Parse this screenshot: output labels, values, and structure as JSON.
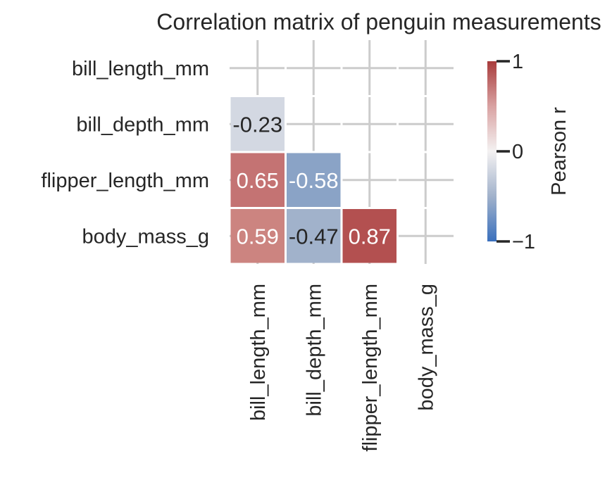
{
  "chart_data": {
    "type": "heatmap",
    "title": "Correlation matrix of penguin measurements",
    "variables": [
      "bill_length_mm",
      "bill_depth_mm",
      "flipper_length_mm",
      "body_mass_g"
    ],
    "mask": "upper-triangle-including-diagonal",
    "cells": [
      {
        "row": 1,
        "col": 0,
        "value": -0.23,
        "label": "-0.23",
        "color": "#d3d8e2",
        "text_color": "#262626"
      },
      {
        "row": 2,
        "col": 0,
        "value": 0.65,
        "label": "0.65",
        "color": "#c47373",
        "text_color": "#ffffff"
      },
      {
        "row": 2,
        "col": 1,
        "value": -0.58,
        "label": "-0.58",
        "color": "#8aa3c6",
        "text_color": "#ffffff"
      },
      {
        "row": 3,
        "col": 0,
        "value": 0.59,
        "label": "0.59",
        "color": "#cc8480",
        "text_color": "#ffffff"
      },
      {
        "row": 3,
        "col": 1,
        "value": -0.47,
        "label": "-0.47",
        "color": "#a1b2cb",
        "text_color": "#262626"
      },
      {
        "row": 3,
        "col": 2,
        "value": 0.87,
        "label": "0.87",
        "color": "#b35050",
        "text_color": "#ffffff"
      }
    ],
    "colorbar": {
      "label": "Pearson r",
      "range": [
        -1,
        1
      ],
      "ticks": [
        {
          "value": 1,
          "label": "1"
        },
        {
          "value": 0,
          "label": "0"
        },
        {
          "value": -1,
          "label": "−1"
        }
      ],
      "stops": [
        "#3a70bd",
        "#a1b2cb",
        "#f4f2f2",
        "#d9a2a2",
        "#a83c3c"
      ]
    },
    "grid": true
  }
}
